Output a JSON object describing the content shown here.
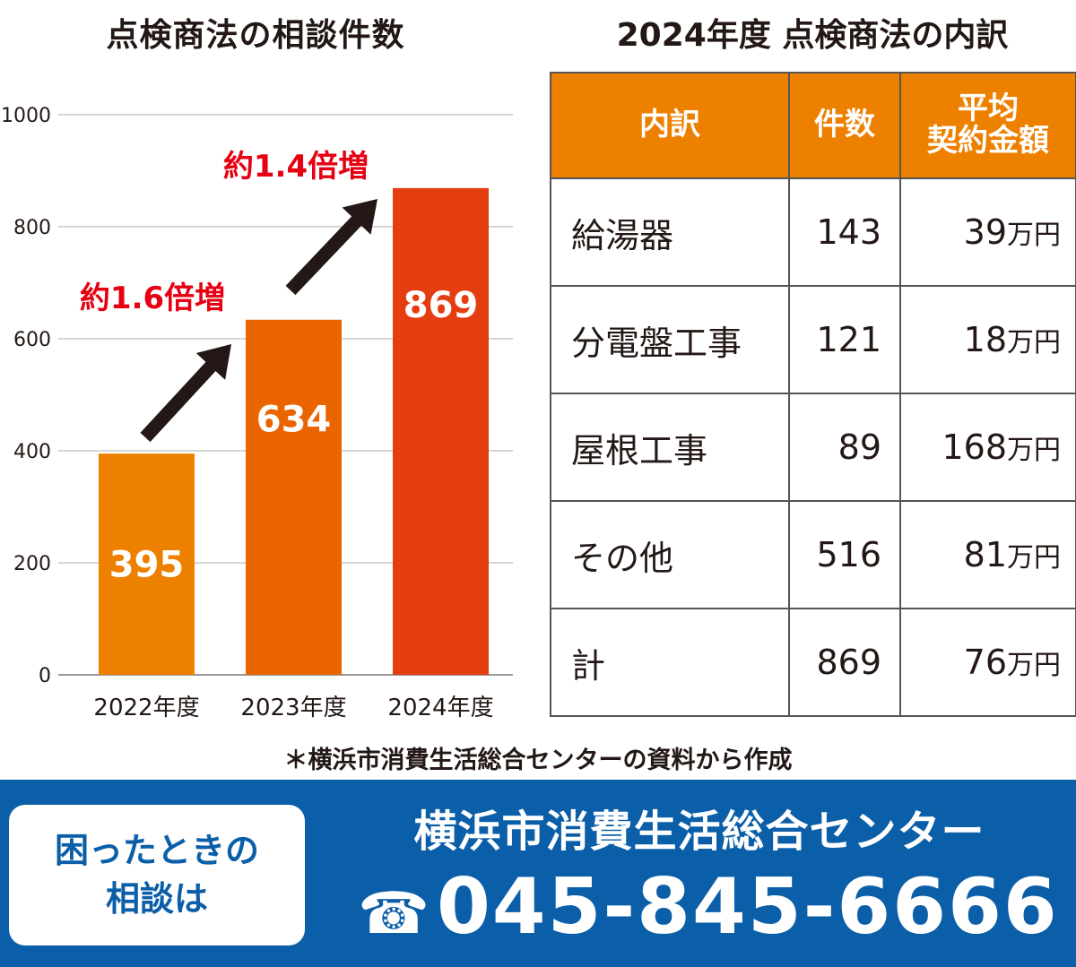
{
  "chart_title": "点検商法の相談件数",
  "table_title": "2024年度 点検商法の内訳",
  "chart_data": {
    "type": "bar",
    "title": "点検商法の相談件数",
    "categories": [
      "2022年度",
      "2023年度",
      "2024年度"
    ],
    "values": [
      395,
      634,
      869
    ],
    "bar_colors": [
      "#ee8000",
      "#ea6400",
      "#e33d10"
    ],
    "ylim": [
      0,
      1000
    ],
    "yticks": [
      0,
      200,
      400,
      600,
      800,
      1000
    ],
    "grid": true,
    "annotations": [
      "約1.6倍増",
      "約1.4倍増"
    ]
  },
  "table": {
    "headers": {
      "item": "内訳",
      "count": "件数",
      "amount_line1": "平均",
      "amount_line2": "契約金額"
    },
    "rows": [
      {
        "item": "給湯器",
        "count": "143",
        "amount": "39",
        "unit": "万円"
      },
      {
        "item": "分電盤工事",
        "count": "121",
        "amount": "18",
        "unit": "万円"
      },
      {
        "item": "屋根工事",
        "count": "89",
        "amount": "168",
        "unit": "万円"
      },
      {
        "item": "その他",
        "count": "516",
        "amount": "81",
        "unit": "万円"
      },
      {
        "item": "計",
        "count": "869",
        "amount": "76",
        "unit": "万円"
      }
    ]
  },
  "source_note": "＊横浜市消費生活総合センターの資料から作成",
  "footer": {
    "help_line1": "困ったときの",
    "help_line2": "相談は",
    "center_name": "横浜市消費生活総合センター",
    "phone_icon": "☎",
    "phone": "045-845-6666"
  },
  "colors": {
    "accent_red": "#e60012",
    "header_orange": "#ee8000",
    "footer_blue": "#0b5ea8",
    "arrow": "#231815"
  }
}
